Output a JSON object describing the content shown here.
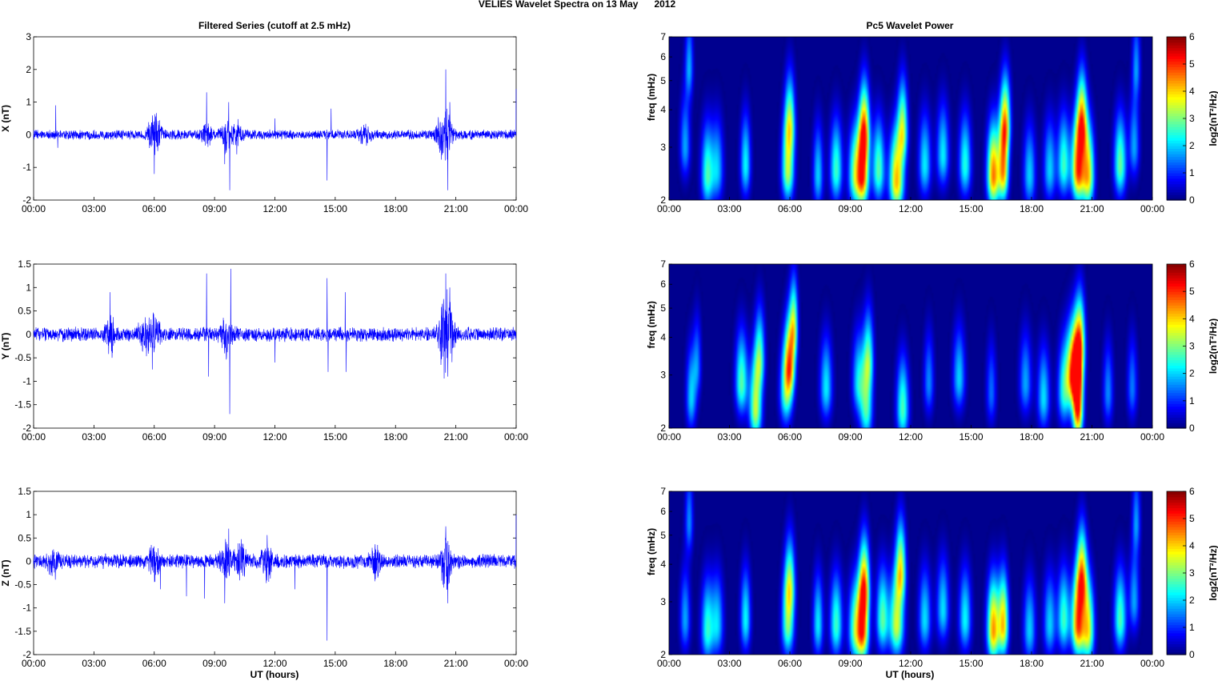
{
  "suptitle": "VELIES Wavelet Spectra on 13 May      2012",
  "left_title": "Filtered Series (cutoff at 2.5 mHz)",
  "right_title": "Pc5 Wavelet Power",
  "xlabel": "UT (hours)",
  "time_ticks": [
    "00:00",
    "03:00",
    "06:00",
    "09:00",
    "12:00",
    "15:00",
    "18:00",
    "21:00",
    "00:00"
  ],
  "chart_data": [
    {
      "type": "line",
      "panel": "X",
      "ylabel": "X (nT)",
      "ylim": [
        -2,
        3
      ],
      "yticks": [
        -2,
        -1,
        0,
        1,
        2,
        3
      ],
      "xlim_hours": [
        0,
        24
      ],
      "series_color": "#0000ff",
      "noise_amplitude": 0.12,
      "envelope": [
        [
          5.9,
          0.25
        ],
        [
          6.1,
          0.3
        ],
        [
          8.6,
          0.2
        ],
        [
          9.6,
          0.4
        ],
        [
          10.2,
          0.25
        ],
        [
          16.5,
          0.2
        ],
        [
          20.3,
          0.45
        ],
        [
          20.6,
          0.35
        ]
      ],
      "spikes": [
        [
          1.1,
          0.9
        ],
        [
          1.2,
          -0.4
        ],
        [
          6.0,
          -1.2
        ],
        [
          8.6,
          1.3
        ],
        [
          9.5,
          -0.9
        ],
        [
          9.7,
          1.0
        ],
        [
          9.75,
          -1.7
        ],
        [
          10.1,
          -0.6
        ],
        [
          12.0,
          0.5
        ],
        [
          14.6,
          -1.4
        ],
        [
          14.8,
          0.8
        ],
        [
          20.5,
          2.0
        ],
        [
          20.6,
          -1.7
        ],
        [
          20.7,
          1.0
        ],
        [
          24.0,
          1.4
        ]
      ]
    },
    {
      "type": "line",
      "panel": "Y",
      "ylabel": "Y (nT)",
      "ylim": [
        -2,
        1.5
      ],
      "yticks": [
        -2,
        -1.5,
        -1,
        -0.5,
        0,
        0.5,
        1,
        1.5
      ],
      "xlim_hours": [
        0,
        24
      ],
      "series_color": "#0000ff",
      "noise_amplitude": 0.12,
      "envelope": [
        [
          3.8,
          0.25
        ],
        [
          5.5,
          0.3
        ],
        [
          6.0,
          0.3
        ],
        [
          9.6,
          0.3
        ],
        [
          20.4,
          0.5
        ],
        [
          20.7,
          0.4
        ]
      ],
      "spikes": [
        [
          3.8,
          0.9
        ],
        [
          3.9,
          -0.5
        ],
        [
          5.9,
          -0.75
        ],
        [
          8.6,
          1.3
        ],
        [
          8.7,
          -0.9
        ],
        [
          9.75,
          -1.7
        ],
        [
          9.8,
          1.4
        ],
        [
          12.0,
          -0.6
        ],
        [
          14.6,
          1.2
        ],
        [
          14.65,
          -0.8
        ],
        [
          15.5,
          0.9
        ],
        [
          15.55,
          -0.8
        ],
        [
          20.5,
          1.3
        ],
        [
          20.6,
          -0.9
        ],
        [
          20.7,
          1.0
        ]
      ]
    },
    {
      "type": "line",
      "panel": "Z",
      "ylabel": "Z (nT)",
      "ylim": [
        -2,
        1.5
      ],
      "yticks": [
        -2,
        -1.5,
        -1,
        -0.5,
        0,
        0.5,
        1,
        1.5
      ],
      "xlim_hours": [
        0,
        24
      ],
      "series_color": "#0000ff",
      "noise_amplitude": 0.12,
      "envelope": [
        [
          1.0,
          0.2
        ],
        [
          6.0,
          0.25
        ],
        [
          9.6,
          0.35
        ],
        [
          10.3,
          0.3
        ],
        [
          11.6,
          0.3
        ],
        [
          17.0,
          0.25
        ],
        [
          20.5,
          0.4
        ]
      ],
      "spikes": [
        [
          6.3,
          -0.6
        ],
        [
          7.6,
          -0.75
        ],
        [
          8.5,
          -0.8
        ],
        [
          9.5,
          -0.9
        ],
        [
          9.7,
          0.7
        ],
        [
          13.0,
          -0.6
        ],
        [
          14.6,
          -1.7
        ],
        [
          20.5,
          0.75
        ],
        [
          20.6,
          -0.9
        ],
        [
          24.0,
          1.0
        ]
      ]
    },
    {
      "type": "heatmap",
      "panel": "X",
      "ylabel": "freq (mHz)",
      "yscale": "log",
      "ylim": [
        2,
        7
      ],
      "yticks": [
        2,
        3,
        4,
        5,
        6,
        7
      ],
      "xlim_hours": [
        0,
        24
      ],
      "colormap": "jet",
      "clim": [
        0,
        6
      ],
      "colorbar_label": "log2(nT²/Hz)",
      "colorbar_ticks": [
        0,
        1,
        2,
        3,
        4,
        5,
        6
      ],
      "blobs": [
        [
          0.8,
          3.0,
          2.0,
          0.25
        ],
        [
          1.0,
          5.5,
          2.0,
          0.2
        ],
        [
          1.9,
          2.4,
          3.0,
          0.3
        ],
        [
          2.4,
          2.5,
          2.2,
          0.3
        ],
        [
          3.8,
          2.6,
          2.6,
          0.25
        ],
        [
          5.9,
          2.5,
          3.8,
          0.3
        ],
        [
          6.0,
          3.6,
          3.0,
          0.25
        ],
        [
          7.4,
          2.4,
          2.3,
          0.25
        ],
        [
          8.3,
          2.5,
          3.0,
          0.3
        ],
        [
          9.2,
          2.4,
          3.0,
          0.3
        ],
        [
          9.6,
          2.4,
          5.6,
          0.3
        ],
        [
          9.7,
          3.4,
          4.0,
          0.25
        ],
        [
          10.4,
          2.5,
          3.2,
          0.3
        ],
        [
          11.3,
          2.3,
          4.8,
          0.35
        ],
        [
          11.6,
          3.4,
          3.5,
          0.25
        ],
        [
          12.7,
          2.6,
          2.5,
          0.3
        ],
        [
          13.6,
          2.8,
          2.5,
          0.3
        ],
        [
          14.7,
          2.6,
          2.8,
          0.3
        ],
        [
          16.1,
          2.4,
          5.2,
          0.3
        ],
        [
          16.6,
          2.5,
          4.8,
          0.25
        ],
        [
          16.7,
          3.6,
          3.8,
          0.25
        ],
        [
          17.9,
          2.4,
          2.3,
          0.3
        ],
        [
          18.9,
          2.5,
          2.3,
          0.3
        ],
        [
          19.6,
          2.6,
          3.0,
          0.3
        ],
        [
          20.3,
          2.5,
          5.5,
          0.3
        ],
        [
          20.5,
          3.6,
          4.3,
          0.25
        ],
        [
          20.8,
          2.4,
          4.6,
          0.3
        ],
        [
          22.4,
          2.6,
          3.3,
          0.3
        ],
        [
          23.1,
          3.0,
          2.0,
          0.25
        ],
        [
          23.2,
          5.5,
          1.8,
          0.2
        ]
      ]
    },
    {
      "type": "heatmap",
      "panel": "Y",
      "ylabel": "freq (mHz)",
      "yscale": "log",
      "ylim": [
        2,
        7
      ],
      "yticks": [
        2,
        3,
        4,
        5,
        6,
        7
      ],
      "xlim_hours": [
        0,
        24
      ],
      "colormap": "jet",
      "clim": [
        0,
        6
      ],
      "colorbar_label": "log2(nT²/Hz)",
      "colorbar_ticks": [
        0,
        1,
        2,
        3,
        4,
        5,
        6
      ],
      "blobs": [
        [
          1.1,
          2.5,
          2.3,
          0.25
        ],
        [
          1.4,
          3.2,
          1.6,
          0.2
        ],
        [
          3.6,
          2.8,
          3.2,
          0.3
        ],
        [
          4.3,
          2.3,
          3.9,
          0.3
        ],
        [
          4.5,
          3.4,
          2.8,
          0.25
        ],
        [
          5.8,
          2.6,
          3.0,
          0.3
        ],
        [
          6.0,
          3.2,
          4.3,
          0.25
        ],
        [
          6.2,
          4.3,
          3.2,
          0.2
        ],
        [
          7.8,
          2.7,
          2.5,
          0.3
        ],
        [
          9.4,
          2.8,
          2.4,
          0.3
        ],
        [
          9.8,
          2.3,
          3.0,
          0.3
        ],
        [
          9.9,
          3.4,
          2.6,
          0.25
        ],
        [
          11.6,
          2.3,
          3.1,
          0.3
        ],
        [
          12.9,
          2.8,
          1.8,
          0.25
        ],
        [
          14.4,
          2.9,
          2.3,
          0.3
        ],
        [
          16.0,
          2.6,
          1.6,
          0.25
        ],
        [
          17.7,
          2.8,
          2.0,
          0.3
        ],
        [
          18.6,
          2.5,
          2.4,
          0.3
        ],
        [
          19.6,
          2.6,
          2.6,
          0.3
        ],
        [
          20.1,
          3.0,
          5.8,
          0.35
        ],
        [
          20.3,
          2.3,
          5.5,
          0.25
        ],
        [
          20.4,
          3.8,
          3.8,
          0.25
        ],
        [
          21.8,
          2.6,
          1.8,
          0.25
        ],
        [
          23.0,
          2.7,
          1.7,
          0.25
        ]
      ]
    },
    {
      "type": "heatmap",
      "panel": "Z",
      "ylabel": "freq (mHz)",
      "yscale": "log",
      "ylim": [
        2,
        7
      ],
      "yticks": [
        2,
        3,
        4,
        5,
        6,
        7
      ],
      "xlim_hours": [
        0,
        24
      ],
      "colormap": "jet",
      "clim": [
        0,
        6
      ],
      "colorbar_label": "log2(nT²/Hz)",
      "colorbar_ticks": [
        0,
        1,
        2,
        3,
        4,
        5,
        6
      ],
      "blobs": [
        [
          0.8,
          2.6,
          2.0,
          0.25
        ],
        [
          1.0,
          5.5,
          1.8,
          0.2
        ],
        [
          1.9,
          2.4,
          2.8,
          0.3
        ],
        [
          2.4,
          2.5,
          2.3,
          0.3
        ],
        [
          3.8,
          2.6,
          2.6,
          0.25
        ],
        [
          5.9,
          2.5,
          3.3,
          0.3
        ],
        [
          6.0,
          3.4,
          2.8,
          0.25
        ],
        [
          7.4,
          2.5,
          2.5,
          0.25
        ],
        [
          8.3,
          2.5,
          3.0,
          0.3
        ],
        [
          9.2,
          2.4,
          2.8,
          0.3
        ],
        [
          9.6,
          2.4,
          5.6,
          0.3
        ],
        [
          9.7,
          3.4,
          3.8,
          0.25
        ],
        [
          10.6,
          2.6,
          3.2,
          0.3
        ],
        [
          11.3,
          2.5,
          4.0,
          0.35
        ],
        [
          11.5,
          3.8,
          3.8,
          0.25
        ],
        [
          12.7,
          2.6,
          2.4,
          0.3
        ],
        [
          13.6,
          2.8,
          2.4,
          0.3
        ],
        [
          14.7,
          2.6,
          2.6,
          0.3
        ],
        [
          16.1,
          2.4,
          5.0,
          0.3
        ],
        [
          16.6,
          2.5,
          4.5,
          0.25
        ],
        [
          17.9,
          2.4,
          2.3,
          0.3
        ],
        [
          18.9,
          2.5,
          2.3,
          0.3
        ],
        [
          19.6,
          2.6,
          3.0,
          0.3
        ],
        [
          20.3,
          2.5,
          5.4,
          0.3
        ],
        [
          20.5,
          3.6,
          4.2,
          0.25
        ],
        [
          20.8,
          2.4,
          4.3,
          0.3
        ],
        [
          22.4,
          2.6,
          3.1,
          0.3
        ],
        [
          23.1,
          3.0,
          2.0,
          0.25
        ],
        [
          23.2,
          5.5,
          1.8,
          0.2
        ]
      ]
    }
  ]
}
